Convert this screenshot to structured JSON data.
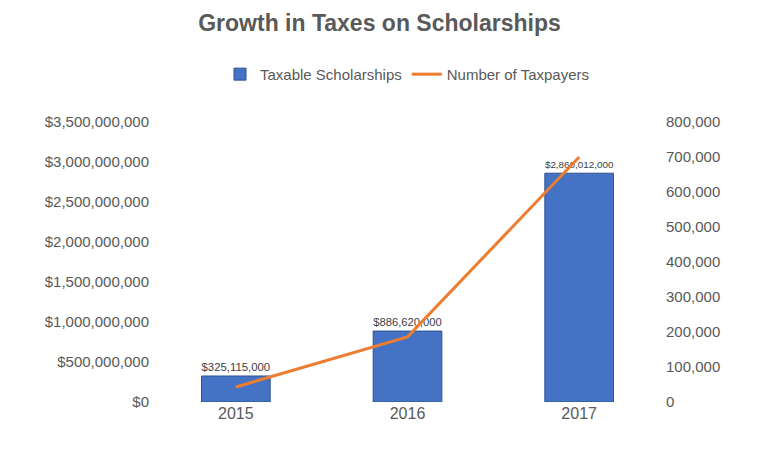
{
  "chart_data": {
    "type": "bar",
    "title": "Growth in Taxes on Scholarships",
    "categories": [
      "2015",
      "2016",
      "2017"
    ],
    "series": [
      {
        "name": "Taxable Scholarships",
        "type": "bar",
        "color": "#4472c4",
        "values": [
          325115000,
          886620000,
          2860012000
        ],
        "value_labels": [
          "$325,115,000",
          "$886,620,000",
          "$2,860,012,000"
        ]
      },
      {
        "name": "Number of Taxpayers",
        "type": "line",
        "color": "#ed7d31",
        "axis": "y2",
        "values": [
          43000,
          186000,
          700000
        ]
      }
    ],
    "data_labels": true,
    "ylim": [
      0,
      3500000000
    ],
    "yticks": [
      {
        "value": 0,
        "label": "$0"
      },
      {
        "value": 500000000,
        "label": "$500,000,000"
      },
      {
        "value": 1000000000,
        "label": "$1,000,000,000"
      },
      {
        "value": 1500000000,
        "label": "$1,500,000,000"
      },
      {
        "value": 2000000000,
        "label": "$2,000,000,000"
      },
      {
        "value": 2500000000,
        "label": "$2,500,000,000"
      },
      {
        "value": 3000000000,
        "label": "$3,000,000,000"
      },
      {
        "value": 3500000000,
        "label": "$3,500,000,000"
      }
    ],
    "y2lim": [
      0,
      800000
    ],
    "y2ticks": [
      0,
      {
        "value": 100000,
        "label": "100,000"
      },
      {
        "value": 200000,
        "label": "200,000"
      },
      {
        "value": 300000,
        "label": "300,000"
      },
      {
        "value": 400000,
        "label": "400,000"
      },
      {
        "value": 500000,
        "label": "500,000"
      },
      {
        "value": 600000,
        "label": "600,000"
      },
      {
        "value": 700000,
        "label": "700,000"
      },
      {
        "value": 800000,
        "label": "800,000"
      }
    ],
    "legend": "top",
    "grid": false
  }
}
